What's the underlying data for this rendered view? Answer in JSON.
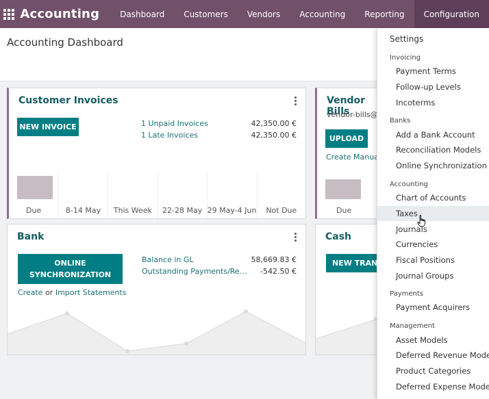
{
  "navbar": {
    "brand": "Accounting",
    "items": [
      "Dashboard",
      "Customers",
      "Vendors",
      "Accounting",
      "Reporting",
      "Configuration"
    ]
  },
  "page": {
    "title": "Accounting Dashboard"
  },
  "customer_invoices": {
    "title": "Customer Invoices",
    "button": "NEW INVOICE",
    "links": [
      {
        "label": "1 Unpaid Invoices",
        "amount": "42,350.00 €"
      },
      {
        "label": "1 Late Invoices",
        "amount": "42,350.00 €"
      }
    ],
    "graph_labels": [
      "Due",
      "8-14 May",
      "This Week",
      "22-28 May",
      "29 May-4 Jun",
      "Not Due"
    ]
  },
  "vendor_bills": {
    "title": "Vendor Bills",
    "email": "vendor-bills@p",
    "button": "UPLOAD",
    "create_manual": "Create Manual",
    "graph_label": "Due"
  },
  "bank": {
    "title": "Bank",
    "button": "ONLINE SYNCHRONIZATION",
    "create": "Create",
    "or": "or",
    "import": "Import",
    "statements": "Statements",
    "lines": [
      {
        "label": "Balance in GL",
        "amount": "58,669.83 €"
      },
      {
        "label": "Outstanding Payments/Re…",
        "amount": "-542.50 €"
      }
    ]
  },
  "cash": {
    "title": "Cash",
    "button": "NEW TRANS"
  },
  "config_menu": {
    "settings": "Settings",
    "sections": [
      {
        "header": "Invoicing",
        "items": [
          "Payment Terms",
          "Follow-up Levels",
          "Incoterms"
        ]
      },
      {
        "header": "Banks",
        "items": [
          "Add a Bank Account",
          "Reconciliation Models",
          "Online Synchronization"
        ]
      },
      {
        "header": "Accounting",
        "items": [
          "Chart of Accounts",
          "Taxes",
          "Journals",
          "Currencies",
          "Fiscal Positions",
          "Journal Groups"
        ]
      },
      {
        "header": "Payments",
        "items": [
          "Payment Acquirers"
        ]
      },
      {
        "header": "Management",
        "items": [
          "Asset Models",
          "Deferred Revenue Models",
          "Product Categories",
          "Deferred Expense Models"
        ]
      }
    ],
    "hovered": "Taxes"
  },
  "colors": {
    "navbar": "#71506a",
    "primary_button": "#017e84",
    "link": "#1a6f73",
    "card_accent": "#8f6b9a"
  }
}
